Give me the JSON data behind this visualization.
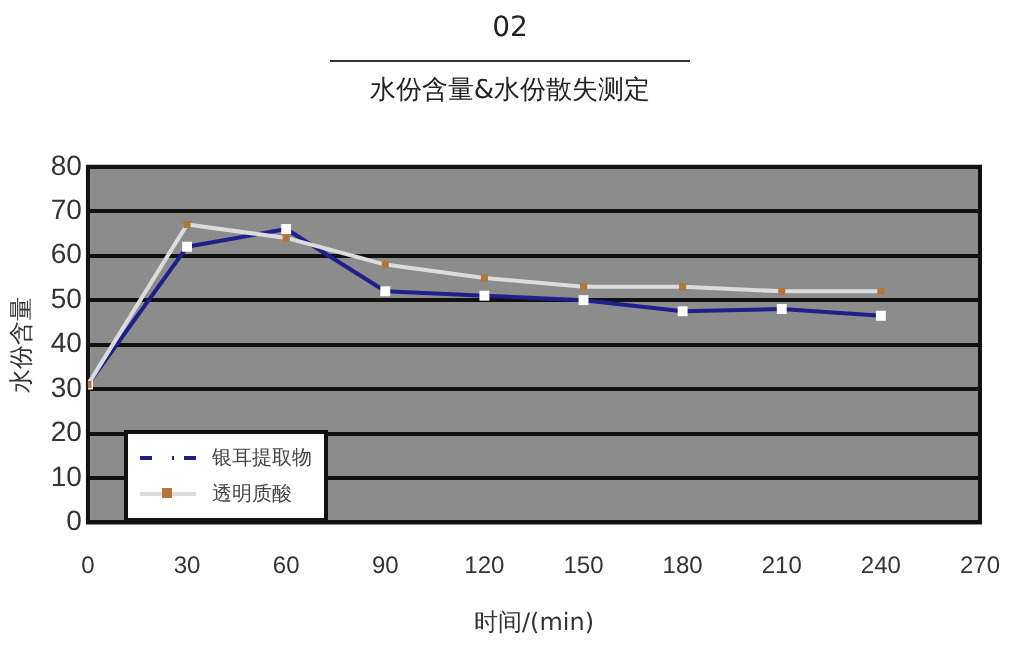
{
  "chart_data": {
    "type": "line",
    "title": "02",
    "subtitle": "水份含量&水份散失测定",
    "xlabel": "时间/(min)",
    "ylabel": "水份含量",
    "x": [
      0,
      30,
      60,
      90,
      120,
      150,
      180,
      210,
      240
    ],
    "series": [
      {
        "name": "银耳提取物",
        "color": "#1f1f8c",
        "values": [
          31,
          62,
          66,
          52,
          51,
          50,
          47.5,
          48,
          46.5
        ]
      },
      {
        "name": "透明质酸",
        "color": "#dcdcdc",
        "values": [
          31,
          67,
          64,
          58,
          55,
          53,
          53,
          52,
          52
        ]
      }
    ],
    "xlim": [
      0,
      270
    ],
    "xticks": [
      0,
      30,
      60,
      90,
      120,
      150,
      180,
      210,
      240,
      270
    ],
    "ylim": [
      0,
      80
    ],
    "yticks": [
      0,
      10,
      20,
      30,
      40,
      50,
      60,
      70,
      80
    ],
    "grid": "y",
    "legend": "bottom left",
    "marker": "square",
    "line_style": "solid"
  }
}
